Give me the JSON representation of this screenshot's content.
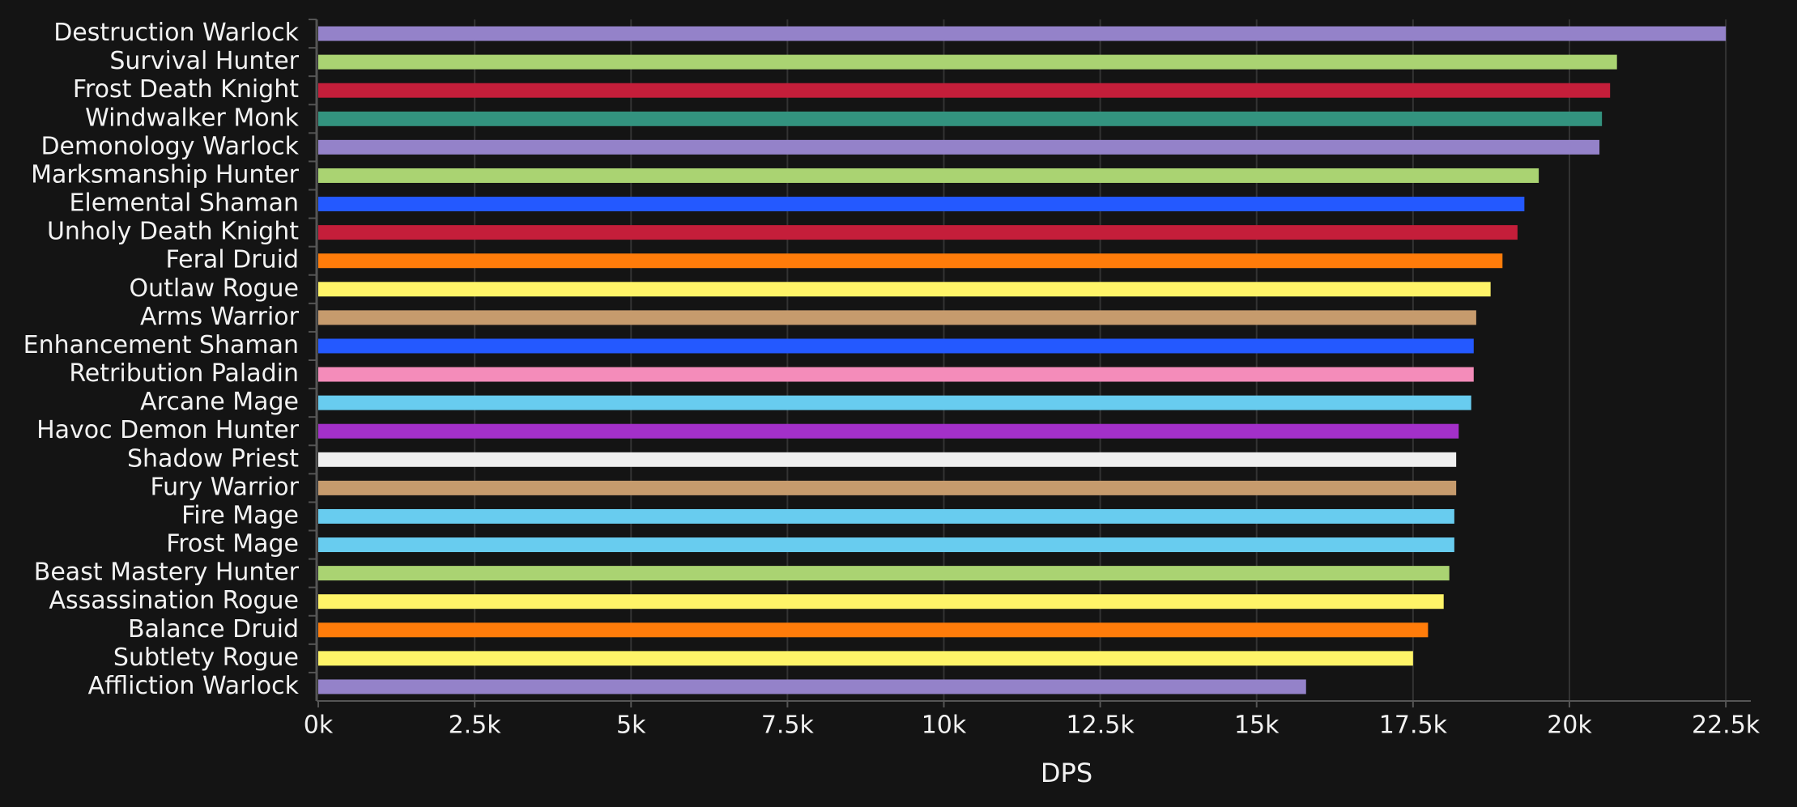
{
  "chart_data": {
    "type": "barh",
    "x_label": "DPS",
    "categories": [
      "Destruction Warlock",
      "Survival Hunter",
      "Frost Death Knight",
      "Windwalker Monk",
      "Demonology Warlock",
      "Marksmanship Hunter",
      "Elemental Shaman",
      "Unholy Death Knight",
      "Feral Druid",
      "Outlaw Rogue",
      "Arms Warrior",
      "Enhancement Shaman",
      "Retribution Paladin",
      "Arcane Mage",
      "Havoc Demon Hunter",
      "Shadow Priest",
      "Fury Warrior",
      "Fire Mage",
      "Frost Mage",
      "Beast Mastery Hunter",
      "Assassination Rogue",
      "Balance Druid",
      "Subtlety Rogue",
      "Affliction Warlock"
    ],
    "values": [
      22500,
      20760,
      20650,
      20520,
      20480,
      19510,
      19280,
      19170,
      18930,
      18740,
      18510,
      18470,
      18470,
      18430,
      18230,
      18190,
      18190,
      18160,
      18160,
      18080,
      17990,
      17740,
      17500,
      15790
    ],
    "colors": [
      "#9482c9",
      "#aad372",
      "#c41e3a",
      "#33937f",
      "#9482c9",
      "#aad372",
      "#2459ff",
      "#c41e3a",
      "#ff7c0a",
      "#fff468",
      "#c69b6d",
      "#2459ff",
      "#f48cba",
      "#68ccef",
      "#a330c9",
      "#f0f0f0",
      "#c69b6d",
      "#68ccef",
      "#68ccef",
      "#aad372",
      "#fff468",
      "#ff7c0a",
      "#fff468",
      "#9482c9"
    ],
    "xlim": [
      0,
      22900
    ],
    "xticks": [
      {
        "value": 0,
        "label": "0k"
      },
      {
        "value": 2500,
        "label": "2.5k"
      },
      {
        "value": 5000,
        "label": "5k"
      },
      {
        "value": 7500,
        "label": "7.5k"
      },
      {
        "value": 10000,
        "label": "10k"
      },
      {
        "value": 12500,
        "label": "12.5k"
      },
      {
        "value": 15000,
        "label": "15k"
      },
      {
        "value": 17500,
        "label": "17.5k"
      },
      {
        "value": 20000,
        "label": "20k"
      },
      {
        "value": 22500,
        "label": "22.5k"
      }
    ],
    "grid": true
  }
}
